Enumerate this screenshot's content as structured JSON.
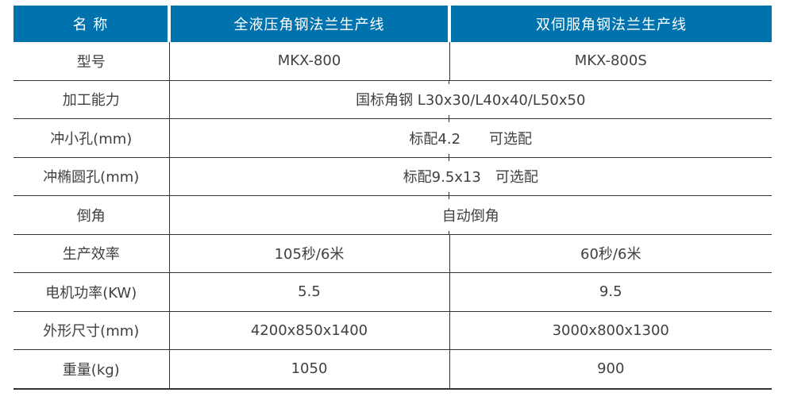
{
  "colors": {
    "header_bg": "#0073ae",
    "header_text": "#ffffff",
    "border": "#333333",
    "body_text": "#404040",
    "background": "#ffffff"
  },
  "table": {
    "header": [
      "名 称",
      "全液压角钢法兰生产线",
      "双伺服角钢法兰生产线"
    ],
    "rows": [
      {
        "label": "型号",
        "values": [
          "MKX-800",
          "MKX-800S"
        ]
      },
      {
        "label": "加工能力",
        "span": "国标角钢 L30x30/L40x40/L50x50"
      },
      {
        "label": "冲小孔(mm)",
        "span": "标配4.2　　可选配"
      },
      {
        "label": "冲椭圆孔(mm)",
        "span": "标配9.5x13　可选配"
      },
      {
        "label": "倒角",
        "span": "自动倒角"
      },
      {
        "label": "生产效率",
        "values": [
          "105秒/6米",
          "60秒/6米"
        ]
      },
      {
        "label": "电机功率(KW)",
        "values": [
          "5.5",
          "9.5"
        ]
      },
      {
        "label": "外形尺寸(mm)",
        "values": [
          "4200x850x1400",
          "3000x800x1300"
        ]
      },
      {
        "label": "重量(kg)",
        "values": [
          "1050",
          "900"
        ]
      }
    ]
  }
}
